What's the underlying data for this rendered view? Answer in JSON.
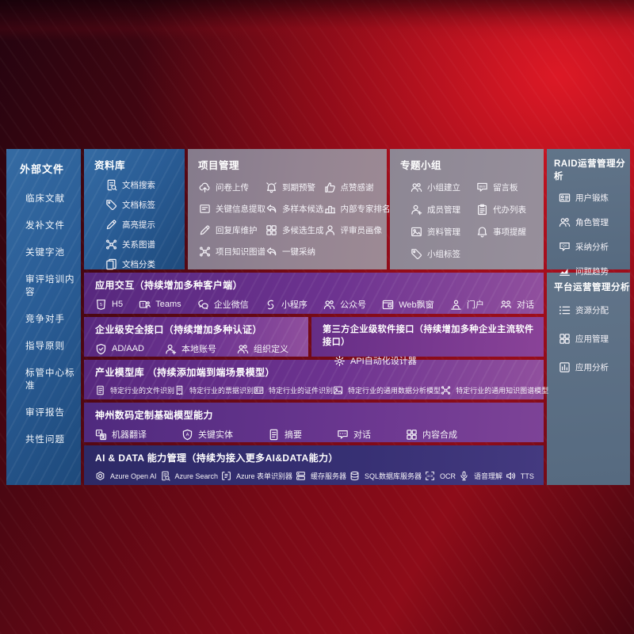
{
  "palette": {
    "bg-red": "#8e0c19",
    "panel-blue": "#2a5d96",
    "panel-gray": "#948492",
    "panel-slate": "#5c7085",
    "row-purple": "#6d3390",
    "row-indigo": "#373074",
    "text": "#ffffff"
  },
  "sidebar": {
    "title": "外部文件",
    "items": [
      "临床文献",
      "发补文件",
      "关键字池",
      "审评培训内容",
      "竞争对手",
      "指导原则",
      "标管中心标准",
      "审评报告",
      "共性问题"
    ]
  },
  "repo": {
    "title": "资料库",
    "items": [
      {
        "icon": "doc-search",
        "label": "文档搜索"
      },
      {
        "icon": "tag",
        "label": "文档标签"
      },
      {
        "icon": "pen",
        "label": "高亮提示"
      },
      {
        "icon": "graph",
        "label": "关系图谱"
      },
      {
        "icon": "docs",
        "label": "文档分类"
      }
    ]
  },
  "project": {
    "title": "项目管理",
    "items": [
      {
        "icon": "cloud-up",
        "label": "问卷上传"
      },
      {
        "icon": "alarm",
        "label": "到期预警"
      },
      {
        "icon": "thumb",
        "label": "点赞感谢"
      },
      {
        "icon": "doc-extract",
        "label": "关键信息提取"
      },
      {
        "icon": "reply",
        "label": "多样本候选"
      },
      {
        "icon": "rank",
        "label": "内部专家排名"
      },
      {
        "icon": "pen",
        "label": "回复库维护"
      },
      {
        "icon": "grid",
        "label": "多候选生成"
      },
      {
        "icon": "person",
        "label": "评审员画像"
      },
      {
        "icon": "graph",
        "label": "项目知识图谱"
      },
      {
        "icon": "reply",
        "label": "一键采纳"
      }
    ]
  },
  "groups": {
    "title": "专题小组",
    "items": [
      {
        "icon": "people",
        "label": "小组建立"
      },
      {
        "icon": "bbs",
        "label": "留言板"
      },
      {
        "icon": "person-add",
        "label": "成员管理"
      },
      {
        "icon": "clipboard",
        "label": "代办列表"
      },
      {
        "icon": "image",
        "label": "资料管理"
      },
      {
        "icon": "bell",
        "label": "事项提醒"
      },
      {
        "icon": "tag",
        "label": "小组标签"
      }
    ]
  },
  "raid": {
    "title": "RAID运营管理分析",
    "items": [
      {
        "icon": "id-card",
        "label": "用户锻炼"
      },
      {
        "icon": "people",
        "label": "角色管理"
      },
      {
        "icon": "chat-qa",
        "label": "采纳分析"
      },
      {
        "icon": "trend",
        "label": "问题趋势"
      }
    ]
  },
  "platform": {
    "title": "平台运营管理分析",
    "items": [
      {
        "icon": "list",
        "label": "资源分配"
      },
      {
        "icon": "grid",
        "label": "应用管理"
      },
      {
        "icon": "chart-box",
        "label": "应用分析"
      }
    ]
  },
  "interaction": {
    "title": "应用交互（持续增加多种客户端）",
    "items": [
      {
        "icon": "h5",
        "label": "H5"
      },
      {
        "icon": "teams",
        "label": "Teams"
      },
      {
        "icon": "wechat",
        "label": "企业微信"
      },
      {
        "icon": "mini",
        "label": "小程序"
      },
      {
        "icon": "people",
        "label": "公众号"
      },
      {
        "icon": "window",
        "label": "Web飘窗"
      },
      {
        "icon": "door",
        "label": "门户"
      },
      {
        "icon": "chat-people",
        "label": "对话"
      }
    ]
  },
  "security": {
    "title": "企业级安全接口（持续增加多种认证）",
    "items": [
      {
        "icon": "shield",
        "label": "AD/AAD"
      },
      {
        "icon": "person-add",
        "label": "本地账号"
      },
      {
        "icon": "people",
        "label": "组织定义"
      }
    ]
  },
  "thirdparty": {
    "title": "第三方企业级软件接口（持续增加多种企业主流软件接口）",
    "items": [
      {
        "icon": "gear",
        "label": "API自动化设计器"
      }
    ]
  },
  "industry": {
    "title": "产业模型库 （持续添加端到端场景模型）",
    "items": [
      {
        "icon": "doc",
        "label": "特定行业的文件识别"
      },
      {
        "icon": "receipt",
        "label": "特定行业的票据识别"
      },
      {
        "icon": "id-card",
        "label": "特定行业的证件识别"
      },
      {
        "icon": "image",
        "label": "特定行业的通用数据分析模型"
      },
      {
        "icon": "graph",
        "label": "特定行业的通用知识图谱模型"
      }
    ]
  },
  "basemodel": {
    "title": "神州数码定制基础模型能力",
    "items": [
      {
        "icon": "translate",
        "label": "机器翻译"
      },
      {
        "icon": "shield-a",
        "label": "关键实体"
      },
      {
        "icon": "doc",
        "label": "摘要"
      },
      {
        "icon": "chat",
        "label": "对话"
      },
      {
        "icon": "grid",
        "label": "内容合成"
      }
    ]
  },
  "aidata": {
    "title": "AI & DATA 能力管理（持续为接入更多AI&DATA能力）",
    "items": [
      {
        "icon": "openai",
        "label": "Azure Open AI"
      },
      {
        "icon": "doc-search",
        "label": "Azure Search"
      },
      {
        "icon": "brackets",
        "label": "Azure 表单识别器"
      },
      {
        "icon": "server",
        "label": "缓存服务器"
      },
      {
        "icon": "db",
        "label": "SQL数据库服务器"
      },
      {
        "icon": "ocr",
        "label": "OCR"
      },
      {
        "icon": "mic",
        "label": "语音理解"
      },
      {
        "icon": "tts",
        "label": "TTS"
      }
    ]
  }
}
